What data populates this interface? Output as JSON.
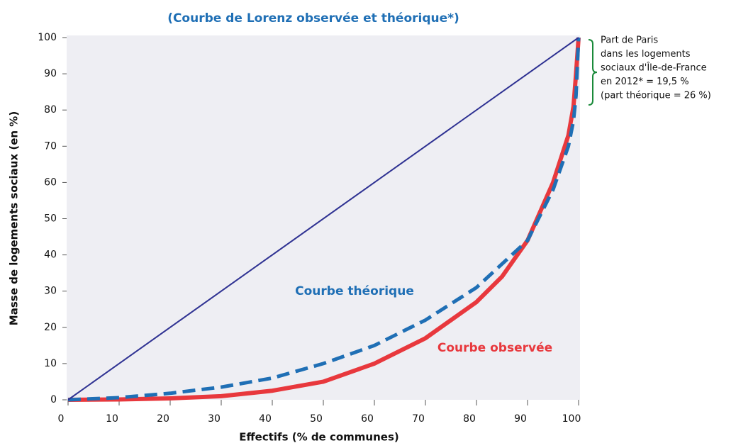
{
  "chart_data": {
    "type": "line",
    "title": "(Courbe de Lorenz observée et théorique*)",
    "x_label": "Effectifs (% de communes)",
    "y_label": "Masse de logements sociaux (en %)",
    "xlim": [
      0,
      100
    ],
    "ylim": [
      0,
      100
    ],
    "xticks": [
      0,
      10,
      20,
      30,
      40,
      50,
      60,
      70,
      80,
      90,
      100
    ],
    "yticks": [
      0,
      10,
      20,
      30,
      40,
      50,
      60,
      70,
      80,
      90,
      100
    ],
    "grid": false,
    "series": [
      {
        "color": "#2e3192",
        "width": 2,
        "dash": false,
        "x": [
          0,
          100
        ],
        "values": [
          0,
          100
        ]
      },
      {
        "name": "Courbe observée",
        "color": "#e8383d",
        "width": 6,
        "dash": false,
        "x": [
          0,
          10,
          20,
          30,
          40,
          50,
          60,
          70,
          80,
          85,
          90,
          95,
          98,
          99,
          99.5,
          100
        ],
        "values": [
          0,
          0.1,
          0.4,
          1,
          2.5,
          5,
          10,
          17,
          27,
          34,
          44,
          60,
          73,
          81,
          90,
          100
        ]
      },
      {
        "name": "Courbe théorique",
        "color": "#1f6fb5",
        "width": 5,
        "dash": true,
        "x": [
          0,
          10,
          20,
          30,
          40,
          50,
          60,
          70,
          80,
          90,
          95,
          98,
          99,
          99.5,
          100
        ],
        "values": [
          0,
          0.6,
          1.8,
          3.5,
          6,
          10,
          15,
          22,
          31,
          44,
          58,
          70,
          77,
          84,
          100
        ]
      }
    ],
    "note": [
      "Part de Paris",
      "dans les logements",
      "sociaux d'Île-de-France",
      "en 2012* = 19,5 %",
      "(part théorique = 26 %)"
    ]
  }
}
